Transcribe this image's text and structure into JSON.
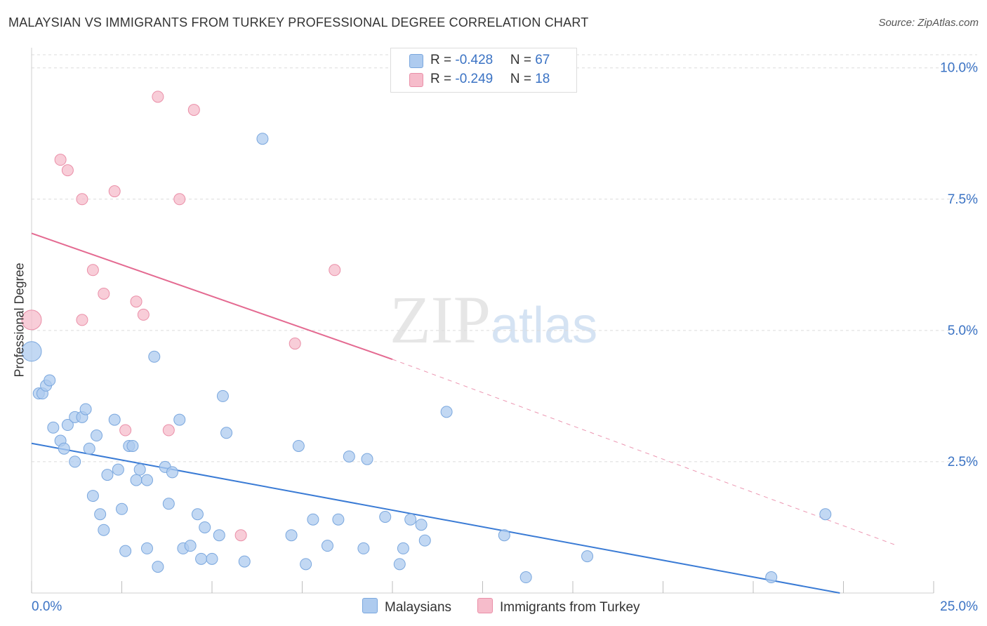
{
  "title": "MALAYSIAN VS IMMIGRANTS FROM TURKEY PROFESSIONAL DEGREE CORRELATION CHART",
  "source": "Source: ZipAtlas.com",
  "watermark_zip": "ZIP",
  "watermark_atlas": "atlas",
  "legend": {
    "row1": {
      "r_label": "R = ",
      "r_value": "-0.428",
      "n_label": "N = ",
      "n_value": "67"
    },
    "row2": {
      "r_label": "R = ",
      "r_value": "-0.249",
      "n_label": "N = ",
      "n_value": "18"
    }
  },
  "colors": {
    "blue_fill": "#aecbef",
    "blue_stroke": "#7aa7de",
    "blue_line": "#3a7bd5",
    "pink_fill": "#f6bccb",
    "pink_stroke": "#ea8fa8",
    "pink_line": "#e46a91",
    "tick_label": "#3b73c4"
  },
  "chart_data": {
    "type": "scatter",
    "title": "MALAYSIAN VS IMMIGRANTS FROM TURKEY PROFESSIONAL DEGREE CORRELATION CHART",
    "xlabel": "",
    "ylabel": "Professional Degree",
    "xlim": [
      0,
      25
    ],
    "ylim": [
      0,
      10.25
    ],
    "x_tick_labels": [
      "0.0%",
      "25.0%"
    ],
    "y_tick_labels": [
      "2.5%",
      "5.0%",
      "7.5%",
      "10.0%"
    ],
    "y_ticks": [
      2.5,
      5.0,
      7.5,
      10.0
    ],
    "grid": true,
    "legend_position": "top-center",
    "series": [
      {
        "name": "Malaysians",
        "color": "#aecbef",
        "r": -0.428,
        "n": 67,
        "trend": {
          "x0": 0,
          "y0": 2.85,
          "x1": 22.4,
          "y1": 0
        },
        "points": [
          [
            0.0,
            4.6
          ],
          [
            0.2,
            3.8
          ],
          [
            0.3,
            3.8
          ],
          [
            0.4,
            3.95
          ],
          [
            0.5,
            4.05
          ],
          [
            0.6,
            3.15
          ],
          [
            0.8,
            2.9
          ],
          [
            0.9,
            2.75
          ],
          [
            1.0,
            3.2
          ],
          [
            1.2,
            3.35
          ],
          [
            1.2,
            2.5
          ],
          [
            1.4,
            3.35
          ],
          [
            1.5,
            3.5
          ],
          [
            1.6,
            2.75
          ],
          [
            1.7,
            1.85
          ],
          [
            1.8,
            3.0
          ],
          [
            1.9,
            1.5
          ],
          [
            2.0,
            1.2
          ],
          [
            2.1,
            2.25
          ],
          [
            2.3,
            3.3
          ],
          [
            2.4,
            2.35
          ],
          [
            2.5,
            1.6
          ],
          [
            2.6,
            0.8
          ],
          [
            2.7,
            2.8
          ],
          [
            2.8,
            2.8
          ],
          [
            2.9,
            2.15
          ],
          [
            3.0,
            2.35
          ],
          [
            3.2,
            2.15
          ],
          [
            3.2,
            0.85
          ],
          [
            3.4,
            4.5
          ],
          [
            3.5,
            0.5
          ],
          [
            3.7,
            2.4
          ],
          [
            3.8,
            1.7
          ],
          [
            3.9,
            2.3
          ],
          [
            4.1,
            3.3
          ],
          [
            4.2,
            0.85
          ],
          [
            4.4,
            0.9
          ],
          [
            4.6,
            1.5
          ],
          [
            4.8,
            1.25
          ],
          [
            4.7,
            0.65
          ],
          [
            5.0,
            0.65
          ],
          [
            5.2,
            1.1
          ],
          [
            5.3,
            3.75
          ],
          [
            5.4,
            3.05
          ],
          [
            5.9,
            0.6
          ],
          [
            6.4,
            8.65
          ],
          [
            7.2,
            1.1
          ],
          [
            7.4,
            2.8
          ],
          [
            7.6,
            0.55
          ],
          [
            7.8,
            1.4
          ],
          [
            8.2,
            0.9
          ],
          [
            8.5,
            1.4
          ],
          [
            8.8,
            2.6
          ],
          [
            9.2,
            0.85
          ],
          [
            9.3,
            2.55
          ],
          [
            9.8,
            1.45
          ],
          [
            10.2,
            0.55
          ],
          [
            10.3,
            0.85
          ],
          [
            10.5,
            1.4
          ],
          [
            10.8,
            1.3
          ],
          [
            10.9,
            1.0
          ],
          [
            11.5,
            3.45
          ],
          [
            13.1,
            1.1
          ],
          [
            13.7,
            0.3
          ],
          [
            15.4,
            0.7
          ],
          [
            20.5,
            0.3
          ],
          [
            22.0,
            1.5
          ]
        ]
      },
      {
        "name": "Immigrants from Turkey",
        "color": "#f6bccb",
        "r": -0.249,
        "n": 18,
        "trend": {
          "x0": 0,
          "y0": 6.85,
          "x1": 10.0,
          "y1": 4.45,
          "dash_x1": 24.0,
          "dash_y1": 0.9
        },
        "points": [
          [
            0.0,
            5.2
          ],
          [
            0.8,
            8.25
          ],
          [
            1.0,
            8.05
          ],
          [
            1.4,
            7.5
          ],
          [
            1.4,
            5.2
          ],
          [
            1.7,
            6.15
          ],
          [
            2.0,
            5.7
          ],
          [
            2.3,
            7.65
          ],
          [
            2.6,
            3.1
          ],
          [
            2.9,
            5.55
          ],
          [
            3.1,
            5.3
          ],
          [
            3.5,
            9.45
          ],
          [
            3.8,
            3.1
          ],
          [
            4.1,
            7.5
          ],
          [
            4.5,
            9.2
          ],
          [
            5.8,
            1.1
          ],
          [
            7.3,
            4.75
          ],
          [
            8.4,
            6.15
          ]
        ]
      }
    ]
  },
  "bottom_legend": {
    "series1": "Malaysians",
    "series2": "Immigrants from Turkey"
  }
}
